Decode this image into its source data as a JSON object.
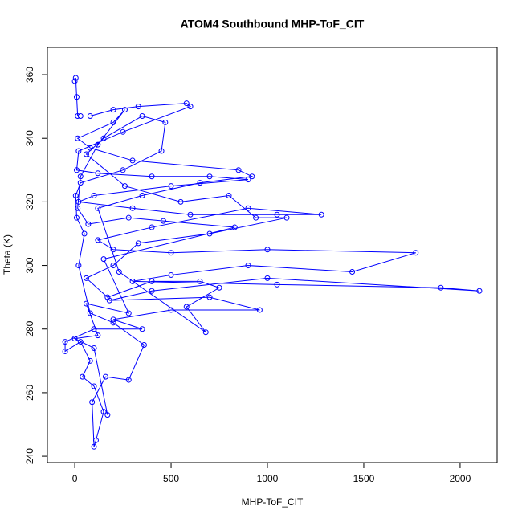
{
  "chart_data": {
    "type": "line",
    "marker": "circle",
    "color": "#0000ff",
    "title": "ATOM4 Southbound MHP-ToF_CIT",
    "xlabel": "MHP-ToF_CIT",
    "ylabel": "Theta (K)",
    "xlim": [
      -142,
      2192
    ],
    "ylim": [
      238,
      368.6
    ],
    "xticks": [
      0,
      500,
      1000,
      1500,
      2000
    ],
    "yticks": [
      240,
      260,
      280,
      300,
      320,
      340,
      360
    ],
    "x": [
      0,
      5,
      10,
      15,
      30,
      80,
      200,
      330,
      580,
      600,
      250,
      20,
      10,
      120,
      400,
      700,
      900,
      500,
      100,
      20,
      300,
      600,
      1050,
      1280,
      900,
      400,
      120,
      200,
      500,
      1000,
      1770,
      1440,
      900,
      500,
      300,
      1050,
      1900,
      2100,
      1000,
      400,
      180,
      700,
      960,
      500,
      200,
      350,
      100,
      -50,
      -50,
      30,
      80,
      40,
      100,
      150,
      110,
      100,
      90,
      160,
      280,
      360,
      200,
      80,
      20,
      50,
      10,
      5,
      30,
      250,
      450,
      470,
      350,
      150,
      60,
      260,
      550,
      800,
      940,
      1100,
      700,
      330,
      200,
      60,
      170,
      400,
      650,
      750,
      580,
      680,
      230,
      120,
      350,
      650,
      920,
      850,
      300,
      80,
      15,
      200,
      260,
      120,
      30,
      15,
      70,
      280,
      460,
      830,
      150,
      280,
      60,
      120,
      0,
      100,
      170
    ],
    "values": [
      358,
      359,
      353,
      347,
      347,
      347,
      349,
      350,
      351,
      350,
      342,
      336,
      330,
      329,
      328,
      328,
      327,
      325,
      322,
      320,
      318,
      316,
      316,
      316,
      318,
      312,
      308,
      305,
      304,
      305,
      304,
      298,
      300,
      297,
      295,
      294,
      293,
      292,
      296,
      292,
      289,
      290,
      286,
      286,
      283,
      280,
      280,
      276,
      273,
      276,
      270,
      265,
      262,
      254,
      245,
      243,
      257,
      265,
      264,
      275,
      282,
      285,
      300,
      310,
      315,
      322,
      326,
      330,
      336,
      345,
      347,
      340,
      335,
      325,
      320,
      322,
      315,
      315,
      310,
      307,
      300,
      296,
      290,
      295,
      295,
      293,
      287,
      279,
      298,
      318,
      322,
      326,
      328,
      330,
      333,
      337,
      340,
      345,
      349,
      338,
      328,
      318,
      313,
      315,
      314,
      312,
      302,
      285,
      288,
      278,
      277,
      274,
      253
    ]
  }
}
